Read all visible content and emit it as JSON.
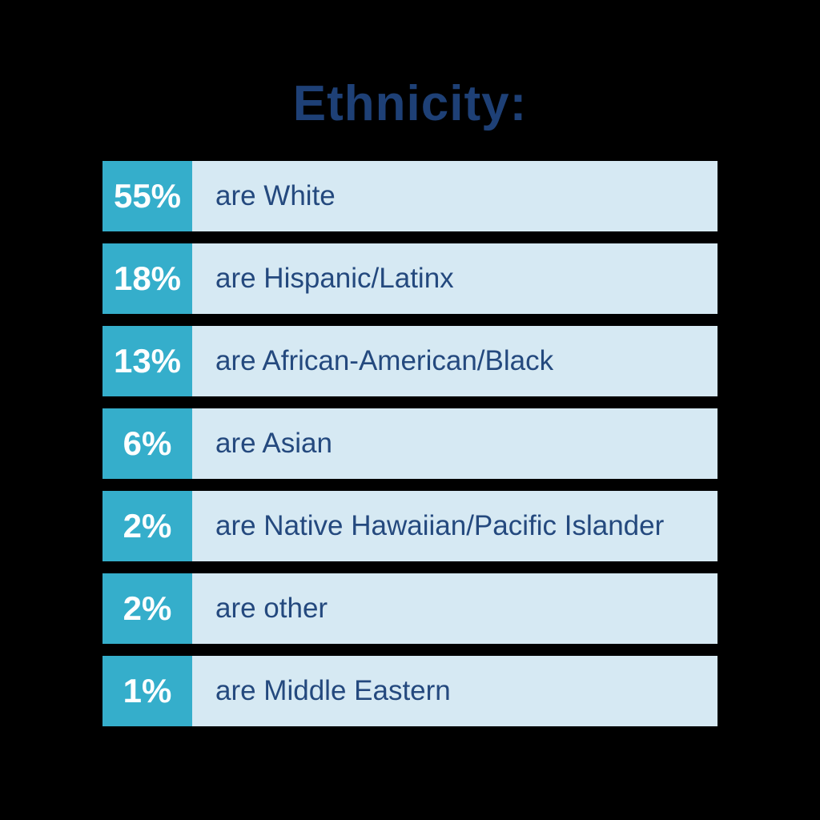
{
  "title": "Ethnicity:",
  "colors": {
    "background": "#000000",
    "badge": "#35AECB",
    "bar": "#D6E9F3",
    "title_text": "#1E4076",
    "label_text": "#24497E",
    "badge_text": "#FFFFFF"
  },
  "chart_data": {
    "type": "table",
    "title": "Ethnicity:",
    "unit": "%",
    "categories": [
      "White",
      "Hispanic/Latinx",
      "African-American/Black",
      "Asian",
      "Native Hawaiian/Pacific Islander",
      "other",
      "Middle Eastern"
    ],
    "values": [
      55,
      18,
      13,
      6,
      2,
      2,
      1
    ],
    "rows": [
      {
        "percent": "55%",
        "label": "are White"
      },
      {
        "percent": "18%",
        "label": "are Hispanic/Latinx"
      },
      {
        "percent": "13%",
        "label": "are African-American/Black"
      },
      {
        "percent": "6%",
        "label": "are Asian"
      },
      {
        "percent": "2%",
        "label": "are Native Hawaiian/Pacific Islander"
      },
      {
        "percent": "2%",
        "label": "are other"
      },
      {
        "percent": "1%",
        "label": "are Middle Eastern"
      }
    ]
  }
}
